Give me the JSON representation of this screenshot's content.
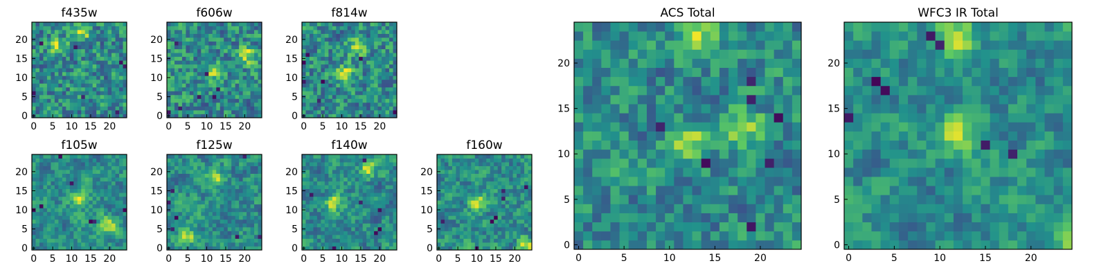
{
  "chart_data": [
    {
      "type": "heatmap",
      "title": "f435w",
      "xlim": [
        0,
        25
      ],
      "ylim": [
        0,
        25
      ],
      "xticks": [
        0,
        5,
        10,
        15,
        20
      ],
      "yticks": [
        0,
        5,
        10,
        15,
        20
      ],
      "xlabel": "",
      "ylabel": "",
      "colormap": "viridis"
    },
    {
      "type": "heatmap",
      "title": "f606w",
      "xlim": [
        0,
        25
      ],
      "ylim": [
        0,
        25
      ],
      "xticks": [
        0,
        5,
        10,
        15,
        20
      ],
      "yticks": [
        0,
        5,
        10,
        15,
        20
      ],
      "xlabel": "",
      "ylabel": "",
      "colormap": "viridis"
    },
    {
      "type": "heatmap",
      "title": "f814w",
      "xlim": [
        0,
        25
      ],
      "ylim": [
        0,
        25
      ],
      "xticks": [
        0,
        5,
        10,
        15,
        20
      ],
      "yticks": [
        0,
        5,
        10,
        15,
        20
      ],
      "xlabel": "",
      "ylabel": "",
      "colormap": "viridis"
    },
    {
      "type": "heatmap",
      "title": "f105w",
      "xlim": [
        0,
        25
      ],
      "ylim": [
        0,
        25
      ],
      "xticks": [
        0,
        5,
        10,
        15,
        20
      ],
      "yticks": [
        0,
        5,
        10,
        15,
        20
      ],
      "xlabel": "",
      "ylabel": "",
      "colormap": "viridis"
    },
    {
      "type": "heatmap",
      "title": "f125w",
      "xlim": [
        0,
        25
      ],
      "ylim": [
        0,
        25
      ],
      "xticks": [
        0,
        5,
        10,
        15,
        20
      ],
      "yticks": [
        0,
        5,
        10,
        15,
        20
      ],
      "xlabel": "",
      "ylabel": "",
      "colormap": "viridis"
    },
    {
      "type": "heatmap",
      "title": "f140w",
      "xlim": [
        0,
        25
      ],
      "ylim": [
        0,
        25
      ],
      "xticks": [
        0,
        5,
        10,
        15,
        20
      ],
      "yticks": [
        0,
        5,
        10,
        15,
        20
      ],
      "xlabel": "",
      "ylabel": "",
      "colormap": "viridis"
    },
    {
      "type": "heatmap",
      "title": "f160w",
      "xlim": [
        0,
        25
      ],
      "ylim": [
        0,
        25
      ],
      "xticks": [
        0,
        5,
        10,
        15,
        20
      ],
      "yticks": [
        0,
        5,
        10,
        15,
        20
      ],
      "xlabel": "",
      "ylabel": "",
      "colormap": "viridis"
    },
    {
      "type": "heatmap",
      "title": "ACS Total",
      "xlim": [
        0,
        25
      ],
      "ylim": [
        0,
        25
      ],
      "xticks": [
        0,
        5,
        10,
        15,
        20
      ],
      "yticks": [
        0,
        5,
        10,
        15,
        20
      ],
      "xlabel": "",
      "ylabel": "",
      "colormap": "viridis"
    },
    {
      "type": "heatmap",
      "title": "WFC3 IR Total",
      "xlim": [
        0,
        25
      ],
      "ylim": [
        0,
        25
      ],
      "xticks": [
        0,
        5,
        10,
        15,
        20
      ],
      "yticks": [
        0,
        5,
        10,
        15,
        20
      ],
      "xlabel": "",
      "ylabel": "",
      "colormap": "viridis"
    }
  ],
  "colors": {
    "viridis": [
      "#440154",
      "#3b528b",
      "#21918c",
      "#5ec962",
      "#fde725"
    ],
    "frame": "#000000",
    "background": "#ffffff"
  }
}
